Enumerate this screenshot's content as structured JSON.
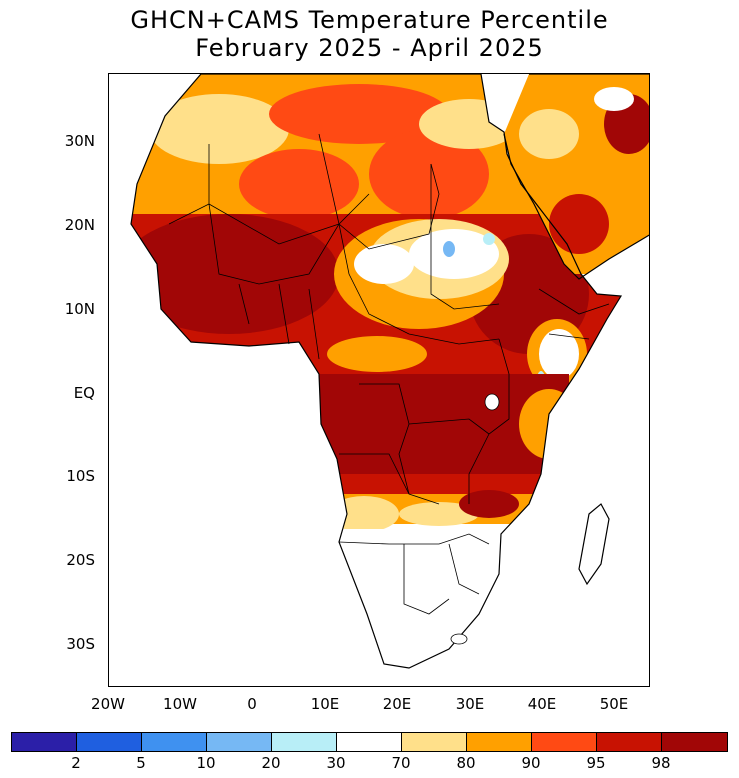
{
  "title": {
    "line1": "GHCN+CAMS Temperature Percentile",
    "line2": "February 2025 - April 2025"
  },
  "map": {
    "region": "Africa",
    "lat_labels": [
      "30N",
      "20N",
      "10N",
      "EQ",
      "10S",
      "20S",
      "30S"
    ],
    "lon_labels": [
      "20W",
      "10W",
      "0",
      "10E",
      "20E",
      "30E",
      "40E",
      "50E"
    ]
  },
  "colorbar": {
    "colors": [
      "#2b1fa8",
      "#1f5fe0",
      "#3f91f0",
      "#76b8f4",
      "#b8eef7",
      "#ffffff",
      "#ffe08a",
      "#ffa000",
      "#ff4a14",
      "#c81202",
      "#a10606"
    ],
    "tick_labels": [
      "2",
      "5",
      "10",
      "20",
      "30",
      "70",
      "80",
      "90",
      "95",
      "98"
    ]
  },
  "palette": {
    "above_98": "#a10606",
    "p95_98": "#c81202",
    "p90_95": "#ff4a14",
    "p80_90": "#ffa000",
    "p70_80": "#ffe08a",
    "p30_70": "#ffffff",
    "p20_30": "#b8eef7",
    "p10_20": "#76b8f4"
  }
}
